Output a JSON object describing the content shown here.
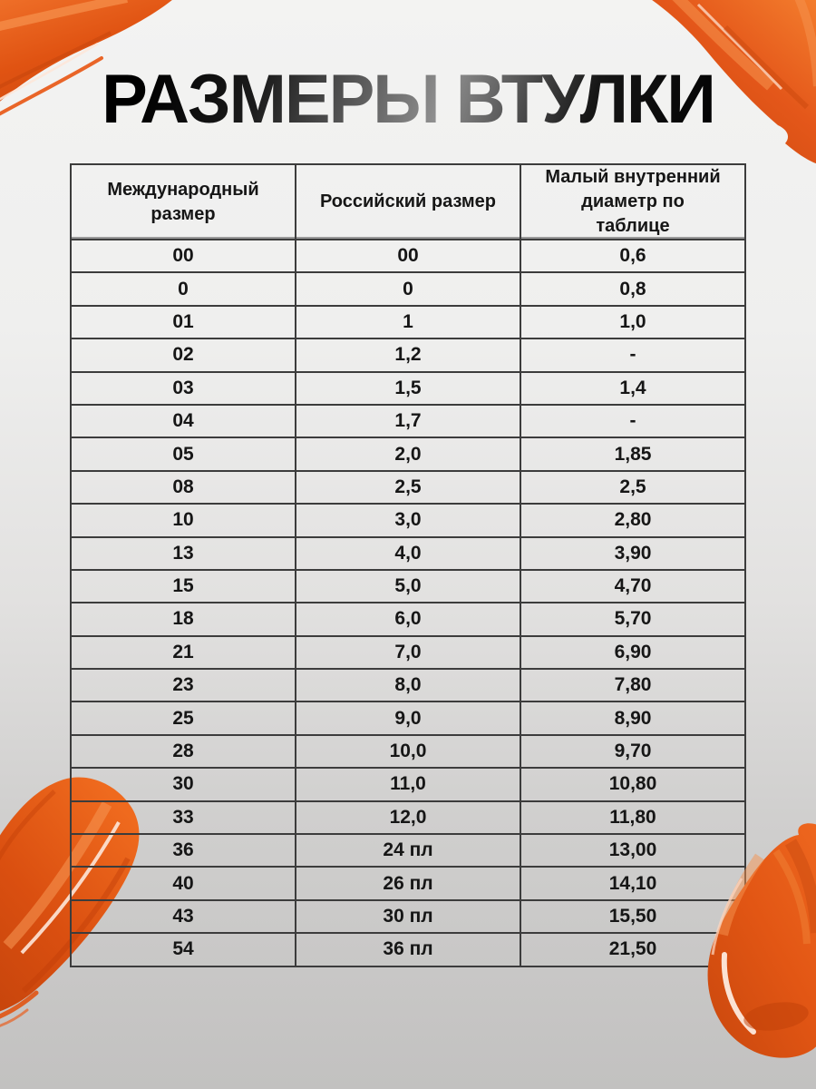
{
  "page": {
    "title": "РАЗМЕРЫ ВТУЛКИ"
  },
  "table": {
    "columns": [
      "Международный размер",
      "Российский размер",
      "Малый внутренний диаметр по таблице"
    ],
    "rows": [
      [
        "00",
        "00",
        "0,6"
      ],
      [
        "0",
        "0",
        "0,8"
      ],
      [
        "01",
        "1",
        "1,0"
      ],
      [
        "02",
        "1,2",
        "-"
      ],
      [
        "03",
        "1,5",
        "1,4"
      ],
      [
        "04",
        "1,7",
        "-"
      ],
      [
        "05",
        "2,0",
        "1,85"
      ],
      [
        "08",
        "2,5",
        "2,5"
      ],
      [
        "10",
        "3,0",
        "2,80"
      ],
      [
        "13",
        "4,0",
        "3,90"
      ],
      [
        "15",
        "5,0",
        "4,70"
      ],
      [
        "18",
        "6,0",
        "5,70"
      ],
      [
        "21",
        "7,0",
        "6,90"
      ],
      [
        "23",
        "8,0",
        "7,80"
      ],
      [
        "25",
        "9,0",
        "8,90"
      ],
      [
        "28",
        "10,0",
        "9,70"
      ],
      [
        "30",
        "11,0",
        "10,80"
      ],
      [
        "33",
        "12,0",
        "11,80"
      ],
      [
        "36",
        "24 пл",
        "13,00"
      ],
      [
        "40",
        "26 пл",
        "14,10"
      ],
      [
        "43",
        "30 пл",
        "15,50"
      ],
      [
        "54",
        "36 пл",
        "21,50"
      ]
    ]
  },
  "colors": {
    "orange": "#e4571a",
    "orange_dark": "#c7450c",
    "orange_light": "#f5934f",
    "orange_specular": "#fde7d9",
    "table_border": "#3c3c3c",
    "text": "#161616",
    "background_top": "#f3f3f2",
    "background_bottom": "#c2c1c0",
    "title_gradient_mid": "#8f8f8f"
  },
  "decorations": {
    "paint_smears": [
      "top-left",
      "top-right",
      "bottom-left",
      "bottom-right"
    ]
  }
}
